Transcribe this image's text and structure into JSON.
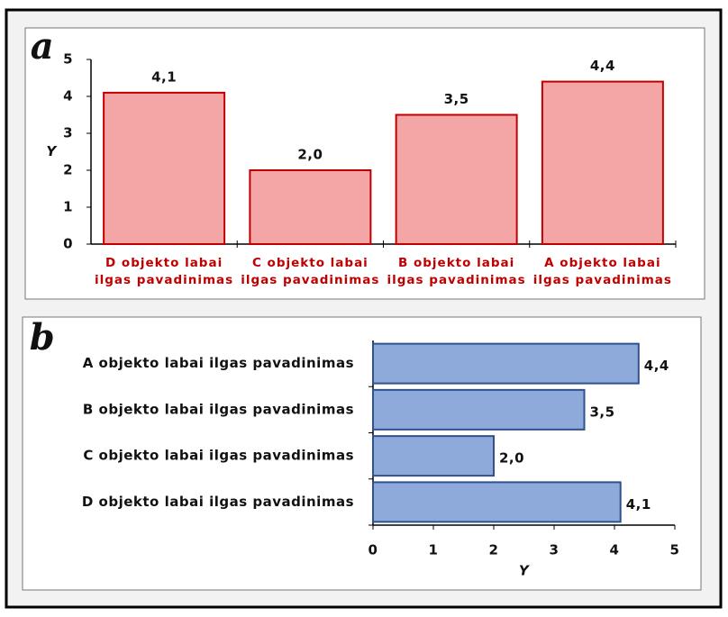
{
  "chart_data": [
    {
      "type": "bar",
      "label": "a",
      "categories": [
        "D objekto labai ilgas pavadinimas",
        "C objekto labai ilgas pavadinimas",
        "B objekto labai ilgas pavadinimas",
        "A objekto labai ilgas pavadinimas"
      ],
      "values": [
        4.1,
        2.0,
        3.5,
        4.4
      ],
      "value_labels": [
        "4,1",
        "2,0",
        "3,5",
        "4,4"
      ],
      "color": "#f4a6a6",
      "edge_color": "#c00000",
      "category_color": "#c00000",
      "ylim": [
        0,
        5
      ],
      "yticks": [
        0,
        1,
        2,
        3,
        4,
        5
      ],
      "ylabel": "Y"
    },
    {
      "type": "barh",
      "label": "b",
      "categories": [
        "A objekto labai ilgas pavadinimas",
        "B objekto labai ilgas pavadinimas",
        "C objekto labai ilgas pavadinimas",
        "D objekto labai ilgas pavadinimas"
      ],
      "values": [
        4.4,
        3.5,
        2.0,
        4.1
      ],
      "value_labels": [
        "4,4",
        "3,5",
        "2,0",
        "4,1"
      ],
      "color": "#8eaadb",
      "edge_color": "#2f528f",
      "category_color": "#111111",
      "xlim": [
        0,
        5
      ],
      "xticks": [
        0,
        1,
        2,
        3,
        4,
        5
      ],
      "xlabel": "Y"
    }
  ]
}
